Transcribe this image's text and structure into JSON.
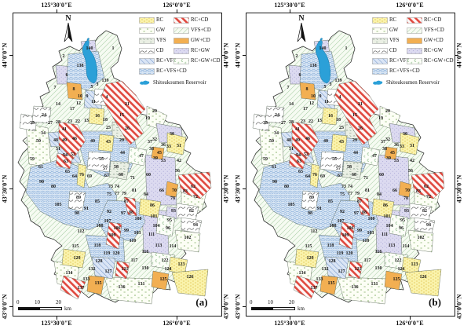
{
  "figure": {
    "type": "watershed-bmp-scenario-maps",
    "panels": [
      {
        "label": "(a)"
      },
      {
        "label": "(b)"
      }
    ],
    "north_label": "N",
    "lon_top": [
      "125°30'0\"E",
      "126°0'0\"E"
    ],
    "lon_bottom": [
      "125°30'0\"E",
      "126°0'0\"E"
    ],
    "lat_left": [
      "44°0'0\"N",
      "43°30'0\"N",
      "43°0'0\"N"
    ],
    "lat_right": [
      "44°0'0\"N",
      "43°30'0\"N",
      "43°0'0\"N"
    ],
    "scale_bar": {
      "ticks": [
        "0",
        "10",
        "20"
      ],
      "unit": "km"
    },
    "legend": {
      "column1": [
        {
          "label": "RC",
          "pattern": "rc"
        },
        {
          "label": "GW",
          "pattern": "gw"
        },
        {
          "label": "VFS",
          "pattern": "vfs"
        },
        {
          "label": "CD",
          "pattern": "cd"
        },
        {
          "label": "RC+VFS",
          "pattern": "rcvfs"
        },
        {
          "label": "RC+VFS+CD",
          "pattern": "rcvfscd"
        }
      ],
      "column2": [
        {
          "label": "RC+CD",
          "pattern": "rccd"
        },
        {
          "label": "VFS+CD",
          "pattern": "vfscd"
        },
        {
          "label": "GW+CD",
          "pattern": "gwcd"
        },
        {
          "label": "RC+GW",
          "pattern": "rcgw"
        },
        {
          "label": "RC+GW+CD",
          "pattern": "rcgwcd"
        }
      ],
      "reservoir": {
        "label": "Shitoukoumen Reservoir",
        "pattern": "reservoir"
      }
    },
    "palette": {
      "rc_fill": "#FAF3AC",
      "rc_mark": "#DFC34F",
      "gw_fill": "#FCFEF5",
      "gw_mark": "#86B06A",
      "vfs_fill": "#EAEFE4",
      "vfs_mark": "#79917F",
      "cd_fill": "#FFFFFF",
      "cd_mark": "#4A4A4A",
      "rcvfs_fill": "#DAE5F5",
      "rcvfs_mark": "#6F93C8",
      "rcvfscd_fill": "#D9E6F4",
      "rcvfscd_mark": "#84ABD8",
      "rccd_fill": "#FEF7F6",
      "rccd_mark": "#E0493F",
      "vfscd_fill": "#F6FBF2",
      "vfscd_mark": "#A3CBA0",
      "gwcd_fill": "#F2AF52",
      "rcgw_fill": "#DCDAF0",
      "rcgw_mark": "#A3A0D2",
      "rcgwcd_fill": "#FCFEF8",
      "rcgwcd_mark": "#8FBE8C",
      "reservoir_fill": "#2BA0D8",
      "frame": "#1a1a1a"
    },
    "subbasins": [
      [
        1,
        127,
        46
      ],
      [
        2,
        64,
        56
      ],
      [
        3,
        107,
        92
      ],
      [
        4,
        119,
        108
      ],
      [
        5,
        100,
        95
      ],
      [
        6,
        68,
        80
      ],
      [
        7,
        53,
        96
      ],
      [
        8,
        77,
        98
      ],
      [
        9,
        94,
        107
      ],
      [
        10,
        85,
        107
      ],
      [
        11,
        102,
        114
      ],
      [
        12,
        83,
        116
      ],
      [
        13,
        93,
        138
      ],
      [
        14,
        57,
        117
      ],
      [
        15,
        138,
        131
      ],
      [
        16,
        107,
        132
      ],
      [
        17,
        75,
        123
      ],
      [
        18,
        117,
        137
      ],
      [
        19,
        171,
        135
      ],
      [
        20,
        180,
        126
      ],
      [
        21,
        145,
        117
      ],
      [
        22,
        82,
        139
      ],
      [
        23,
        72,
        139
      ],
      [
        24,
        39,
        131
      ],
      [
        25,
        121,
        147
      ],
      [
        26,
        145,
        148
      ],
      [
        27,
        47,
        141
      ],
      [
        28,
        57,
        140
      ],
      [
        29,
        138,
        163
      ],
      [
        30,
        202,
        155
      ],
      [
        31,
        211,
        170
      ],
      [
        32,
        180,
        162
      ],
      [
        33,
        198,
        171
      ],
      [
        34,
        38,
        154
      ],
      [
        35,
        24,
        141
      ],
      [
        36,
        191,
        169
      ],
      [
        37,
        174,
        165
      ],
      [
        38,
        176,
        174
      ],
      [
        39,
        181,
        186
      ],
      [
        40,
        101,
        164
      ],
      [
        41,
        65,
        149
      ],
      [
        42,
        211,
        189
      ],
      [
        43,
        121,
        165
      ],
      [
        44,
        139,
        179
      ],
      [
        45,
        186,
        179
      ],
      [
        46,
        78,
        161
      ],
      [
        47,
        163,
        183
      ],
      [
        48,
        54,
        163
      ],
      [
        49,
        65,
        163
      ],
      [
        50,
        32,
        164
      ],
      [
        51,
        57,
        174
      ],
      [
        52,
        76,
        181
      ],
      [
        53,
        191,
        189
      ],
      [
        54,
        66,
        182
      ],
      [
        55,
        112,
        187
      ],
      [
        56,
        209,
        202
      ],
      [
        57,
        117,
        199
      ],
      [
        58,
        131,
        197
      ],
      [
        59,
        24,
        187
      ],
      [
        60,
        172,
        207
      ],
      [
        61,
        35,
        197
      ],
      [
        62,
        229,
        222
      ],
      [
        63,
        67,
        190
      ],
      [
        64,
        78,
        209
      ],
      [
        65,
        69,
        203
      ],
      [
        66,
        189,
        227
      ],
      [
        67,
        119,
        208
      ],
      [
        68,
        137,
        207
      ],
      [
        69,
        97,
        209
      ],
      [
        70,
        205,
        227
      ],
      [
        71,
        152,
        211
      ],
      [
        72,
        232,
        235
      ],
      [
        73,
        124,
        222
      ],
      [
        74,
        132,
        222
      ],
      [
        75,
        122,
        232
      ],
      [
        76,
        87,
        207
      ],
      [
        77,
        132,
        231
      ],
      [
        78,
        203,
        237
      ],
      [
        79,
        141,
        231
      ],
      [
        80,
        51,
        222
      ],
      [
        81,
        154,
        227
      ],
      [
        82,
        227,
        253
      ],
      [
        83,
        219,
        228
      ],
      [
        84,
        169,
        232
      ],
      [
        85,
        107,
        241
      ],
      [
        86,
        177,
        246
      ],
      [
        87,
        144,
        241
      ],
      [
        88,
        150,
        255
      ],
      [
        89,
        83,
        236
      ],
      [
        90,
        36,
        216
      ],
      [
        91,
        93,
        250
      ],
      [
        92,
        122,
        254
      ],
      [
        93,
        204,
        253
      ],
      [
        94,
        232,
        271
      ],
      [
        95,
        199,
        265
      ],
      [
        96,
        197,
        275
      ],
      [
        97,
        140,
        256
      ],
      [
        98,
        81,
        256
      ],
      [
        99,
        144,
        278
      ],
      [
        100,
        159,
        263
      ],
      [
        101,
        179,
        260
      ],
      [
        102,
        222,
        287
      ],
      [
        103,
        158,
        281
      ],
      [
        104,
        182,
        272
      ],
      [
        105,
        57,
        245
      ],
      [
        106,
        132,
        275
      ],
      [
        107,
        120,
        266
      ],
      [
        108,
        110,
        272
      ],
      [
        109,
        126,
        284
      ],
      [
        110,
        152,
        291
      ],
      [
        111,
        176,
        283
      ],
      [
        112,
        86,
        279
      ],
      [
        113,
        185,
        297
      ],
      [
        114,
        203,
        298
      ],
      [
        115,
        79,
        298
      ],
      [
        116,
        168,
        305
      ],
      [
        117,
        154,
        316
      ],
      [
        118,
        107,
        297
      ],
      [
        119,
        119,
        307
      ],
      [
        120,
        131,
        307
      ],
      [
        121,
        142,
        327
      ],
      [
        122,
        193,
        316
      ],
      [
        123,
        214,
        321
      ],
      [
        124,
        197,
        327
      ],
      [
        125,
        191,
        340
      ],
      [
        126,
        225,
        337
      ],
      [
        127,
        121,
        330
      ],
      [
        128,
        109,
        317
      ],
      [
        129,
        81,
        313
      ],
      [
        130,
        168,
        326
      ],
      [
        131,
        163,
        346
      ],
      [
        132,
        100,
        327
      ],
      [
        133,
        93,
        340
      ],
      [
        134,
        71,
        332
      ],
      [
        135,
        108,
        345
      ],
      [
        136,
        138,
        350
      ],
      [
        137,
        86,
        351
      ],
      [
        138,
        85,
        68
      ],
      [
        139,
        117,
        87
      ],
      [
        140,
        97,
        46
      ]
    ]
  }
}
